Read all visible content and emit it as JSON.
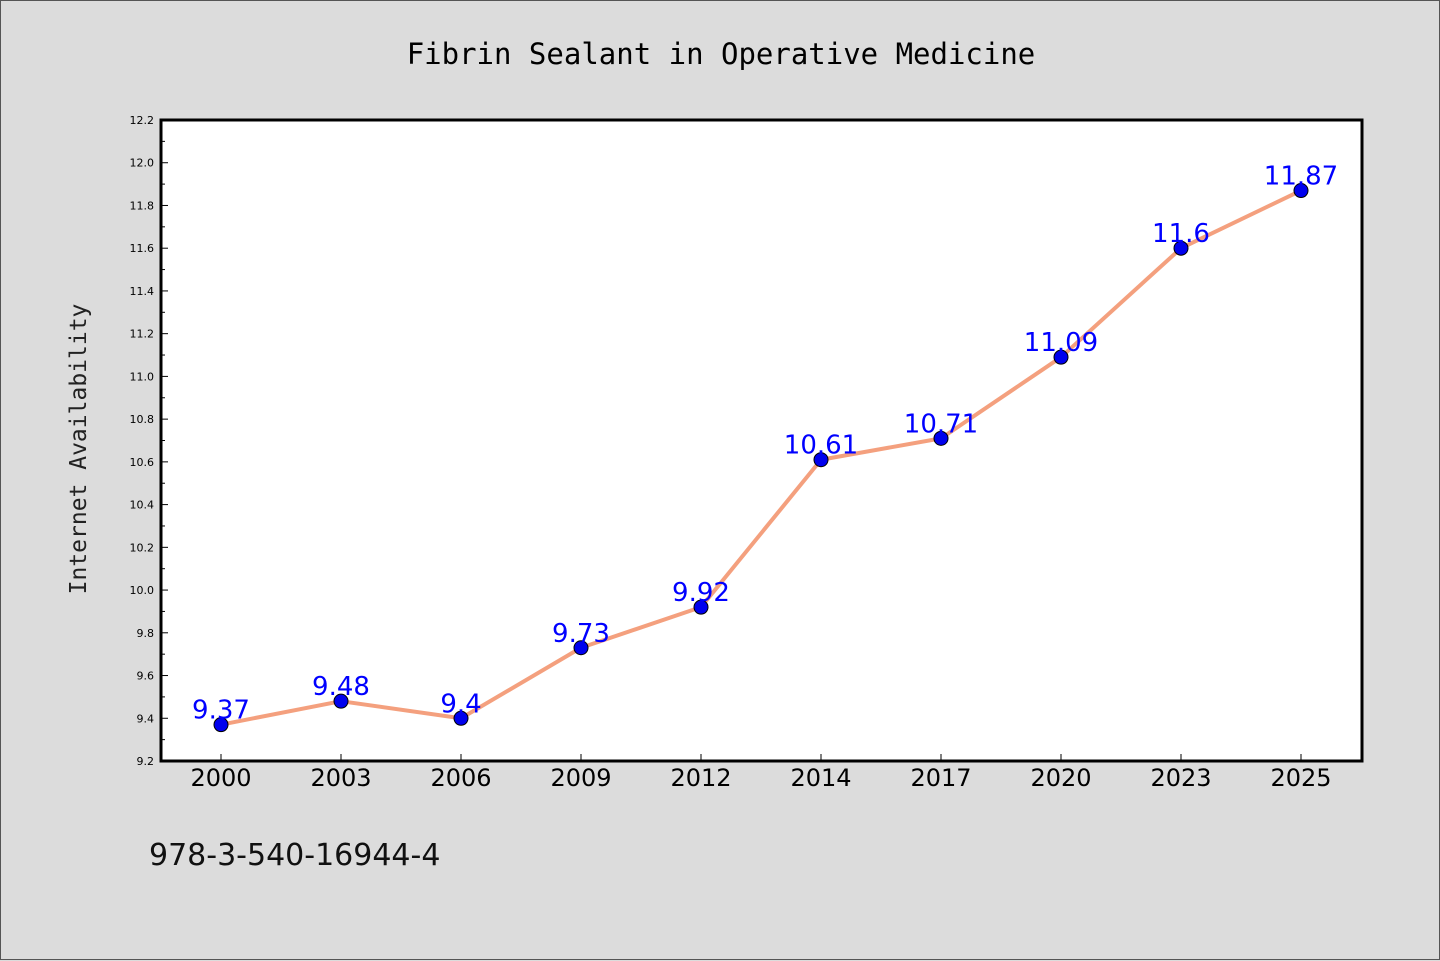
{
  "chart_data": {
    "type": "line",
    "title": "Fibrin Sealant in Operative Medicine",
    "xlabel": "",
    "ylabel": "Internet Availability",
    "categories": [
      "2000",
      "2003",
      "2006",
      "2009",
      "2012",
      "2014",
      "2017",
      "2020",
      "2023",
      "2025"
    ],
    "series": [
      {
        "values": [
          9.37,
          9.48,
          9.4,
          9.73,
          9.92,
          10.61,
          10.71,
          11.09,
          11.6,
          11.87
        ],
        "labels": [
          "9.37",
          "9.48",
          "9.4",
          "9.73",
          "9.92",
          "10.61",
          "10.71",
          "11.09",
          "11.6",
          "11.87"
        ],
        "line_color": "#f4a07e",
        "marker_color": "#0000ee",
        "label_color": "#0000ff"
      }
    ],
    "ylim": [
      9.2,
      12.2
    ],
    "yticks": [
      "9.2",
      "9.4",
      "9.6",
      "9.8",
      "10.0",
      "10.2",
      "10.4",
      "10.6",
      "10.8",
      "11.0",
      "11.2",
      "11.4",
      "11.6",
      "11.8",
      "12.0",
      "12.2"
    ],
    "grid": false,
    "legend": "none"
  },
  "footer": {
    "isbn": "978-3-540-16944-4"
  },
  "colors": {
    "background": "#dcdcdc",
    "plot_background": "#ffffff"
  }
}
